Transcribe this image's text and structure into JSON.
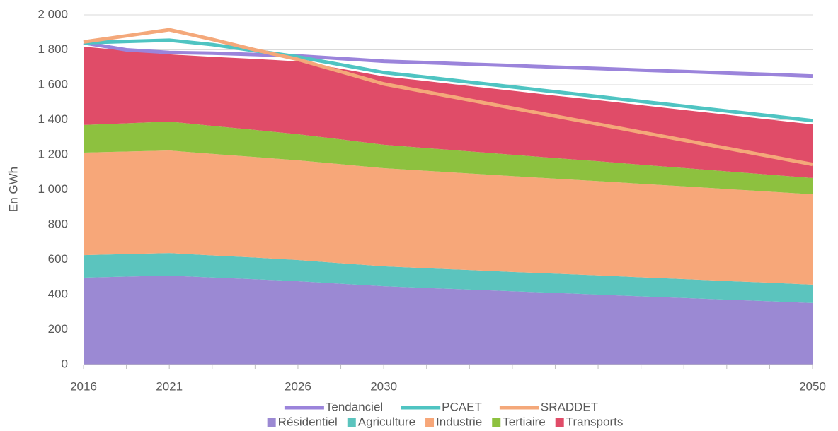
{
  "chart_data": {
    "type": "area",
    "y_label": "En GWh",
    "categories": [
      "2016",
      null,
      "2021",
      null,
      null,
      "2026",
      null,
      "2030",
      null,
      null,
      null,
      null,
      null,
      null,
      null,
      null,
      null,
      "2050"
    ],
    "ylim": [
      0,
      2000
    ],
    "yticks": [
      0,
      200,
      400,
      600,
      800,
      {
        "value": 1000,
        "label": "1 000"
      },
      {
        "value": 1200,
        "label": "1 200"
      },
      {
        "value": 1400,
        "label": "1 400"
      },
      {
        "value": 1600,
        "label": "1 600"
      },
      {
        "value": 1800,
        "label": "1 800"
      },
      {
        "value": 2000,
        "label": "2 000"
      }
    ],
    "grid": true,
    "series": [
      {
        "name": "Résidentiel",
        "type": "area",
        "color": "#9b89d3",
        "values": [
          497,
          503,
          509,
          498,
          488,
          477,
          462,
          448,
          438,
          429,
          419,
          410,
          400,
          390,
          381,
          371,
          362,
          352
        ]
      },
      {
        "name": "Agriculture",
        "type": "area",
        "color": "#5bc4be",
        "values": [
          129,
          129,
          129,
          126,
          124,
          121,
          118,
          114,
          113,
          112,
          111,
          110,
          110,
          109,
          108,
          107,
          106,
          105
        ]
      },
      {
        "name": "Industrie",
        "type": "area",
        "color": "#f7a779",
        "values": [
          586,
          586,
          586,
          581,
          575,
          570,
          566,
          561,
          557,
          552,
          548,
          543,
          539,
          535,
          530,
          526,
          521,
          517
        ]
      },
      {
        "name": "Tertiaire",
        "type": "area",
        "color": "#8dc13f",
        "values": [
          158,
          162,
          166,
          160,
          155,
          149,
          142,
          134,
          130,
          126,
          122,
          118,
          114,
          109,
          105,
          101,
          97,
          93
        ]
      },
      {
        "name": "Transports",
        "type": "area",
        "color": "#e04c68",
        "values": [
          448,
          416,
          384,
          395,
          406,
          417,
          404,
          391,
          383,
          374,
          366,
          357,
          349,
          341,
          332,
          324,
          315,
          307
        ]
      },
      {
        "name": "Tendanciel",
        "type": "line",
        "color": "#9b84db",
        "values": [
          1840,
          1800,
          1785,
          1781,
          1773,
          1765,
          1750,
          1735,
          1727,
          1718,
          1710,
          1701,
          1693,
          1684,
          1676,
          1667,
          1659,
          1650
        ]
      },
      {
        "name": "PCAET",
        "type": "line",
        "color": "#4fc4c2",
        "values": [
          1840,
          1848,
          1855,
          1830,
          1795,
          1760,
          1715,
          1670,
          1643,
          1615,
          1588,
          1560,
          1533,
          1505,
          1478,
          1450,
          1423,
          1395
        ]
      },
      {
        "name": "SRADDET",
        "type": "line",
        "color": "#f4a87a",
        "values": [
          1845,
          1880,
          1915,
          1860,
          1800,
          1745,
          1675,
          1605,
          1559,
          1513,
          1467,
          1421,
          1375,
          1329,
          1283,
          1237,
          1191,
          1145
        ]
      }
    ]
  }
}
